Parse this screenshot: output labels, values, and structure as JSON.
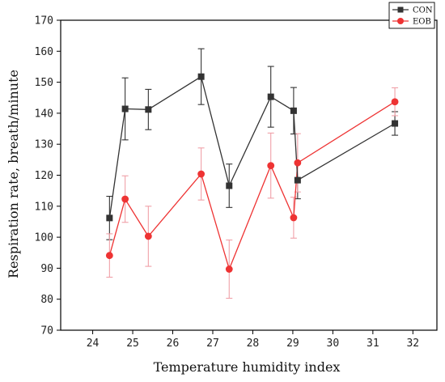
{
  "chart_data": {
    "type": "line",
    "xlabel": "Temperature humidity index",
    "ylabel": "Respiration rate, breath/minute",
    "xlim": [
      23.2,
      32.6
    ],
    "ylim": [
      70,
      170
    ],
    "xticks": [
      24,
      25,
      26,
      27,
      28,
      29,
      30,
      31,
      32
    ],
    "yticks": [
      70,
      80,
      90,
      100,
      110,
      120,
      130,
      140,
      150,
      160,
      170
    ],
    "grid": false,
    "legend_position": "top-right",
    "series": [
      {
        "name": "CON",
        "color": "#333333",
        "marker": "square",
        "points": [
          {
            "x": 24.42,
            "y": 106.2,
            "err": 7.0
          },
          {
            "x": 24.81,
            "y": 141.4,
            "err": 10.0
          },
          {
            "x": 25.39,
            "y": 141.2,
            "err": 6.5
          },
          {
            "x": 26.71,
            "y": 151.8,
            "err": 9.0
          },
          {
            "x": 27.41,
            "y": 116.6,
            "err": 7.0
          },
          {
            "x": 28.45,
            "y": 145.3,
            "err": 9.8
          },
          {
            "x": 29.02,
            "y": 140.8,
            "err": 7.5
          },
          {
            "x": 29.12,
            "y": 118.4,
            "err": 6.0
          },
          {
            "x": 31.55,
            "y": 136.7,
            "err": 3.8
          }
        ]
      },
      {
        "name": "EOB",
        "color": "#ee3333",
        "marker": "circle",
        "points": [
          {
            "x": 24.42,
            "y": 94.1,
            "err": 7.0
          },
          {
            "x": 24.81,
            "y": 112.3,
            "err": 7.5
          },
          {
            "x": 25.39,
            "y": 100.3,
            "err": 9.7
          },
          {
            "x": 26.71,
            "y": 120.4,
            "err": 8.4
          },
          {
            "x": 27.41,
            "y": 89.7,
            "err": 9.4
          },
          {
            "x": 28.45,
            "y": 123.1,
            "err": 10.5
          },
          {
            "x": 29.02,
            "y": 106.3,
            "err": 6.6
          },
          {
            "x": 29.12,
            "y": 124.0,
            "err": 9.4
          },
          {
            "x": 31.55,
            "y": 143.7,
            "err": 4.5
          }
        ]
      }
    ]
  }
}
